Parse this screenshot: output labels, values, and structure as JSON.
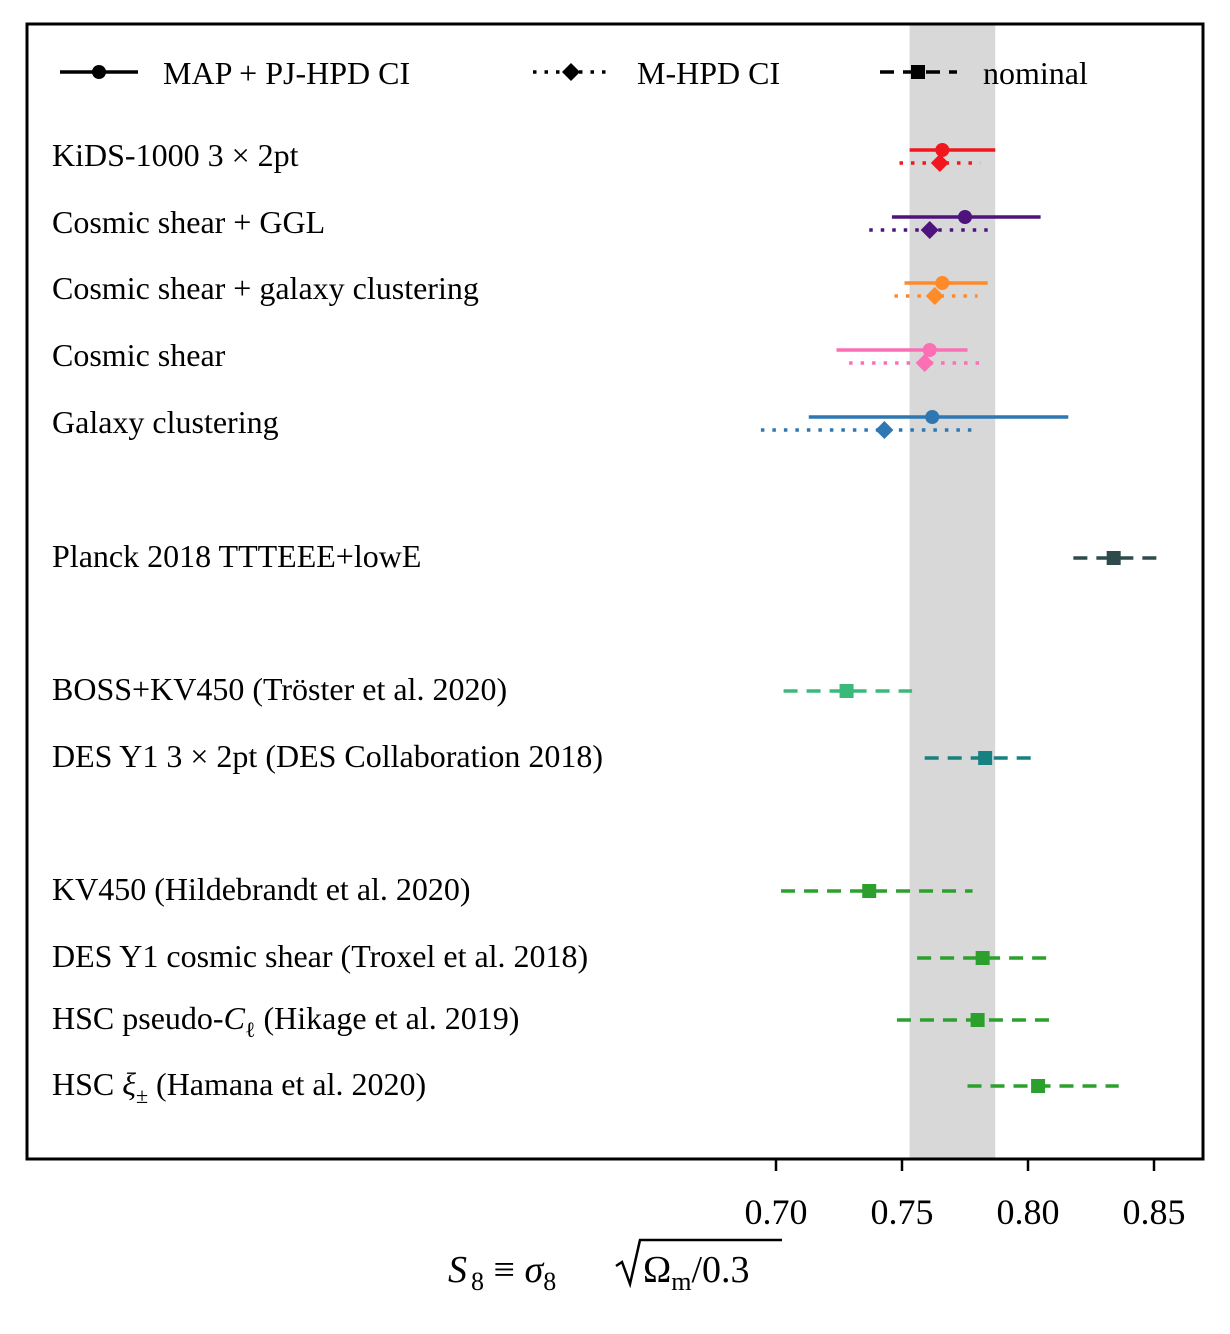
{
  "chart_data": {
    "type": "forest",
    "xlabel": "S₈ ≡ σ₈ √Ωₘ/0.3",
    "xlabel_parts": {
      "lhs": "S",
      "lhs_sub": "8",
      "eq": " ≡ ",
      "sigma": "σ",
      "sigma_sub": "8",
      "root_arg": "Ω",
      "root_sub": "m",
      "root_tail": "/0.3"
    },
    "xlim": [
      0.55,
      0.87
    ],
    "xticks": [
      "0.70",
      "0.75",
      "0.80",
      "0.85"
    ],
    "xtick_values": [
      0.7,
      0.75,
      0.8,
      0.85
    ],
    "band": {
      "from": 0.753,
      "to": 0.787,
      "color": "#d8d8d8"
    },
    "legend": [
      {
        "label": "MAP + PJ-HPD CI",
        "style": "solid",
        "marker": "circle"
      },
      {
        "label": "M-HPD CI",
        "style": "dotted",
        "marker": "diamond"
      },
      {
        "label": "nominal",
        "style": "dashed",
        "marker": "square"
      }
    ],
    "rows": [
      {
        "label": "KiDS-1000 3 × 2pt",
        "color": "#f0171f",
        "map": {
          "value": 0.766,
          "lo": 0.753,
          "hi": 0.787
        },
        "mhpd": {
          "value": 0.765,
          "lo": 0.749,
          "hi": 0.781
        }
      },
      {
        "label": "Cosmic shear + GGL",
        "color": "#4e137d",
        "map": {
          "value": 0.775,
          "lo": 0.746,
          "hi": 0.805
        },
        "mhpd": {
          "value": 0.761,
          "lo": 0.737,
          "hi": 0.784
        }
      },
      {
        "label": "Cosmic shear + galaxy clustering",
        "color": "#ff8a2a",
        "map": {
          "value": 0.766,
          "lo": 0.751,
          "hi": 0.784
        },
        "mhpd": {
          "value": 0.763,
          "lo": 0.747,
          "hi": 0.78
        }
      },
      {
        "label": "Cosmic shear",
        "color": "#fc6fb5",
        "map": {
          "value": 0.761,
          "lo": 0.724,
          "hi": 0.776
        },
        "mhpd": {
          "value": 0.759,
          "lo": 0.729,
          "hi": 0.781
        }
      },
      {
        "label": "Galaxy clustering",
        "color": "#2f77b3",
        "map": {
          "value": 0.762,
          "lo": 0.713,
          "hi": 0.816
        },
        "mhpd": {
          "value": 0.743,
          "lo": 0.694,
          "hi": 0.78
        }
      },
      {
        "label": "Planck 2018 TTTEEE+lowE",
        "color": "#2e4a4a",
        "nominal": {
          "value": 0.834,
          "lo": 0.818,
          "hi": 0.851
        }
      },
      {
        "label": "BOSS+KV450 (Tröster et al. 2020)",
        "color": "#3bb97a",
        "nominal": {
          "value": 0.728,
          "lo": 0.703,
          "hi": 0.754
        }
      },
      {
        "label": "DES Y1 3 × 2pt (DES Collaboration 2018)",
        "color": "#178080",
        "nominal": {
          "value": 0.783,
          "lo": 0.759,
          "hi": 0.804
        }
      },
      {
        "label": "KV450 (Hildebrandt et al. 2020)",
        "color": "#2ca02c",
        "nominal": {
          "value": 0.737,
          "lo": 0.702,
          "hi": 0.778
        }
      },
      {
        "label": "DES Y1 cosmic shear (Troxel et al. 2018)",
        "color": "#2ca02c",
        "nominal": {
          "value": 0.782,
          "lo": 0.756,
          "hi": 0.81
        }
      },
      {
        "label": "HSC pseudo-Cℓ (Hikage et al. 2019)",
        "color": "#2ca02c",
        "label_parts": {
          "pre": "HSC pseudo-",
          "sym": "C",
          "sym_sub": "ℓ",
          "post": " (Hikage et al. 2019)"
        },
        "nominal": {
          "value": 0.78,
          "lo": 0.748,
          "hi": 0.811
        }
      },
      {
        "label": "HSC ξ± (Hamana et al. 2020)",
        "color": "#2ca02c",
        "label_parts": {
          "pre": "HSC ",
          "sym": "ξ",
          "sym_sub": "±",
          "post": " (Hamana et al. 2020)"
        },
        "nominal": {
          "value": 0.804,
          "lo": 0.776,
          "hi": 0.836
        }
      }
    ]
  }
}
